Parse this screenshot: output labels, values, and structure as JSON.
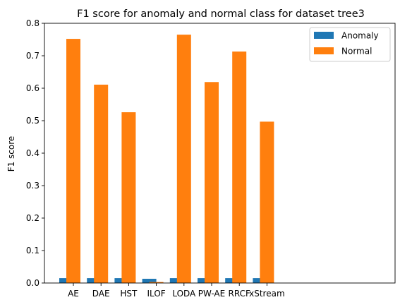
{
  "chart_data": {
    "type": "bar",
    "title": "F1 score for anomaly and normal class for dataset tree3",
    "xlabel": "",
    "ylabel": "F1 score",
    "categories": [
      "AE",
      "DAE",
      "HST",
      "ILOF",
      "LODA",
      "PW-AE",
      "RRCF",
      "xStream"
    ],
    "series": [
      {
        "name": "Anomaly",
        "color": "#1f77b4",
        "values": [
          0.015,
          0.015,
          0.015,
          0.013,
          0.015,
          0.015,
          0.015,
          0.015
        ]
      },
      {
        "name": "Normal",
        "color": "#ff7f0e",
        "values": [
          0.752,
          0.611,
          0.526,
          0.003,
          0.765,
          0.619,
          0.713,
          0.497
        ]
      }
    ],
    "ylim": [
      0,
      0.8
    ],
    "yticks": [
      "0.0",
      "0.1",
      "0.2",
      "0.3",
      "0.4",
      "0.5",
      "0.6",
      "0.7",
      "0.8"
    ],
    "grid": false,
    "legend_position": "top-right"
  }
}
